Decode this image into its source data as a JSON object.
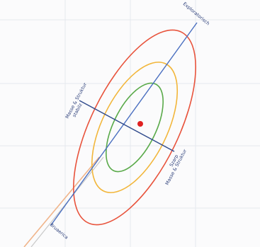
{
  "labels": {
    "axis_top": "Exploratorisch",
    "axis_bottom": "Bruaerica",
    "minor_left_line1": "Masse & Struktur",
    "minor_left_line2": "stabilz",
    "minor_right_line1": "Szarp",
    "minor_right_line2": "Masse & Struktur"
  },
  "colors": {
    "outer_ellipse": "#e8533c",
    "middle_ellipse": "#f2b63a",
    "inner_ellipse": "#5aaa4a",
    "major_axis": "#4a6fc0",
    "minor_axis": "#2f4a8c",
    "center_point": "#e02020",
    "grid": "#e6e8ee",
    "trail_orange": "#f0b48a",
    "trail_gray": "#c8c8c8"
  },
  "icons": {
    "center_point": "red-dot"
  }
}
